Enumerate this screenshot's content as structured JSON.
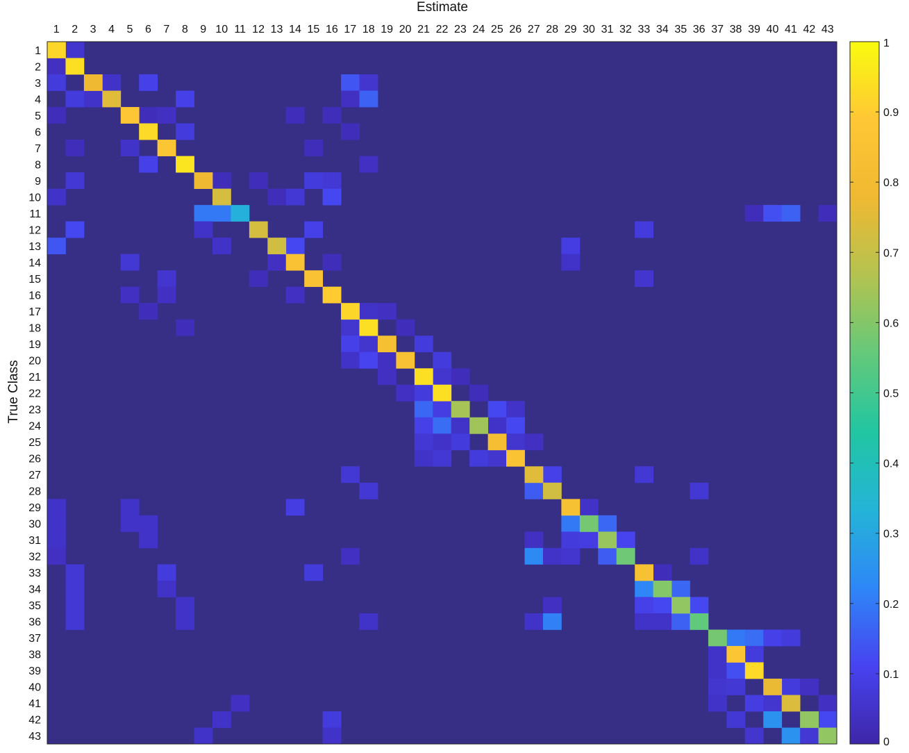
{
  "chart_data": {
    "type": "heatmap",
    "title": "",
    "xlabel": "Estimate",
    "ylabel": "True Class",
    "x_categories": [
      "1",
      "2",
      "3",
      "4",
      "5",
      "6",
      "7",
      "8",
      "9",
      "10",
      "11",
      "12",
      "13",
      "14",
      "15",
      "16",
      "17",
      "18",
      "19",
      "20",
      "21",
      "22",
      "23",
      "24",
      "25",
      "26",
      "27",
      "28",
      "29",
      "30",
      "31",
      "32",
      "33",
      "34",
      "35",
      "36",
      "37",
      "38",
      "39",
      "40",
      "41",
      "42",
      "43"
    ],
    "y_categories": [
      "1",
      "2",
      "3",
      "4",
      "5",
      "6",
      "7",
      "8",
      "9",
      "10",
      "11",
      "12",
      "13",
      "14",
      "15",
      "16",
      "17",
      "18",
      "19",
      "20",
      "21",
      "22",
      "23",
      "24",
      "25",
      "26",
      "27",
      "28",
      "29",
      "30",
      "31",
      "32",
      "33",
      "34",
      "35",
      "36",
      "37",
      "38",
      "39",
      "40",
      "41",
      "42",
      "43"
    ],
    "diagonal": [
      0.92,
      0.94,
      0.78,
      0.75,
      0.88,
      0.93,
      0.87,
      0.95,
      0.78,
      0.73,
      0.32,
      0.73,
      0.72,
      0.85,
      0.85,
      0.9,
      0.92,
      0.94,
      0.83,
      0.85,
      0.94,
      0.94,
      0.65,
      0.64,
      0.82,
      0.86,
      0.75,
      0.72,
      0.84,
      0.58,
      0.63,
      0.57,
      0.84,
      0.6,
      0.62,
      0.55,
      0.58,
      0.87,
      0.93,
      0.77,
      0.74,
      0.62,
      0.62
    ],
    "off_diagonal": [
      [
        0,
        1,
        0.06
      ],
      [
        1,
        0,
        0.04
      ],
      [
        2,
        0,
        0.08
      ],
      [
        2,
        3,
        0.05
      ],
      [
        2,
        5,
        0.1
      ],
      [
        2,
        16,
        0.14
      ],
      [
        2,
        17,
        0.06
      ],
      [
        3,
        1,
        0.08
      ],
      [
        3,
        2,
        0.05
      ],
      [
        3,
        7,
        0.1
      ],
      [
        3,
        16,
        0.04
      ],
      [
        3,
        17,
        0.16
      ],
      [
        4,
        0,
        0.03
      ],
      [
        4,
        5,
        0.03
      ],
      [
        4,
        6,
        0.04
      ],
      [
        4,
        13,
        0.03
      ],
      [
        4,
        15,
        0.03
      ],
      [
        5,
        7,
        0.08
      ],
      [
        5,
        16,
        0.03
      ],
      [
        6,
        1,
        0.03
      ],
      [
        6,
        4,
        0.05
      ],
      [
        6,
        14,
        0.03
      ],
      [
        7,
        5,
        0.1
      ],
      [
        7,
        17,
        0.04
      ],
      [
        8,
        1,
        0.07
      ],
      [
        8,
        9,
        0.03
      ],
      [
        8,
        11,
        0.03
      ],
      [
        8,
        14,
        0.08
      ],
      [
        8,
        15,
        0.07
      ],
      [
        9,
        0,
        0.05
      ],
      [
        9,
        12,
        0.03
      ],
      [
        9,
        13,
        0.07
      ],
      [
        9,
        15,
        0.12
      ],
      [
        10,
        8,
        0.2
      ],
      [
        10,
        9,
        0.2
      ],
      [
        10,
        38,
        0.03
      ],
      [
        10,
        39,
        0.13
      ],
      [
        10,
        40,
        0.16
      ],
      [
        10,
        42,
        0.03
      ],
      [
        11,
        1,
        0.12
      ],
      [
        11,
        8,
        0.05
      ],
      [
        11,
        14,
        0.1
      ],
      [
        11,
        32,
        0.08
      ],
      [
        12,
        0,
        0.14
      ],
      [
        12,
        9,
        0.05
      ],
      [
        12,
        13,
        0.12
      ],
      [
        12,
        28,
        0.09
      ],
      [
        13,
        4,
        0.07
      ],
      [
        13,
        12,
        0.04
      ],
      [
        13,
        15,
        0.03
      ],
      [
        13,
        28,
        0.05
      ],
      [
        14,
        6,
        0.06
      ],
      [
        14,
        11,
        0.03
      ],
      [
        14,
        32,
        0.06
      ],
      [
        15,
        4,
        0.04
      ],
      [
        15,
        6,
        0.04
      ],
      [
        15,
        13,
        0.04
      ],
      [
        16,
        5,
        0.03
      ],
      [
        16,
        17,
        0.05
      ],
      [
        16,
        18,
        0.04
      ],
      [
        17,
        7,
        0.03
      ],
      [
        17,
        16,
        0.06
      ],
      [
        17,
        19,
        0.03
      ],
      [
        18,
        16,
        0.1
      ],
      [
        18,
        17,
        0.06
      ],
      [
        18,
        20,
        0.08
      ],
      [
        19,
        16,
        0.05
      ],
      [
        19,
        17,
        0.11
      ],
      [
        19,
        18,
        0.04
      ],
      [
        19,
        21,
        0.08
      ],
      [
        20,
        18,
        0.04
      ],
      [
        20,
        21,
        0.06
      ],
      [
        20,
        22,
        0.03
      ],
      [
        21,
        19,
        0.04
      ],
      [
        21,
        20,
        0.08
      ],
      [
        21,
        23,
        0.03
      ],
      [
        22,
        20,
        0.17
      ],
      [
        22,
        21,
        0.09
      ],
      [
        22,
        24,
        0.12
      ],
      [
        22,
        25,
        0.05
      ],
      [
        23,
        20,
        0.1
      ],
      [
        23,
        21,
        0.18
      ],
      [
        23,
        22,
        0.05
      ],
      [
        23,
        24,
        0.05
      ],
      [
        23,
        25,
        0.12
      ],
      [
        24,
        20,
        0.07
      ],
      [
        24,
        21,
        0.05
      ],
      [
        24,
        22,
        0.08
      ],
      [
        24,
        25,
        0.06
      ],
      [
        24,
        26,
        0.04
      ],
      [
        25,
        20,
        0.05
      ],
      [
        25,
        21,
        0.07
      ],
      [
        25,
        23,
        0.08
      ],
      [
        25,
        24,
        0.06
      ],
      [
        26,
        16,
        0.07
      ],
      [
        26,
        27,
        0.1
      ],
      [
        26,
        32,
        0.07
      ],
      [
        27,
        17,
        0.07
      ],
      [
        27,
        26,
        0.15
      ],
      [
        27,
        35,
        0.07
      ],
      [
        28,
        0,
        0.05
      ],
      [
        28,
        4,
        0.05
      ],
      [
        28,
        13,
        0.09
      ],
      [
        28,
        29,
        0.05
      ],
      [
        29,
        0,
        0.05
      ],
      [
        29,
        4,
        0.05
      ],
      [
        29,
        5,
        0.05
      ],
      [
        29,
        28,
        0.2
      ],
      [
        29,
        30,
        0.17
      ],
      [
        30,
        0,
        0.05
      ],
      [
        30,
        5,
        0.05
      ],
      [
        30,
        26,
        0.04
      ],
      [
        30,
        28,
        0.08
      ],
      [
        30,
        29,
        0.09
      ],
      [
        30,
        31,
        0.11
      ],
      [
        31,
        0,
        0.04
      ],
      [
        31,
        16,
        0.04
      ],
      [
        31,
        26,
        0.23
      ],
      [
        31,
        27,
        0.05
      ],
      [
        31,
        28,
        0.06
      ],
      [
        31,
        30,
        0.15
      ],
      [
        31,
        35,
        0.05
      ],
      [
        32,
        1,
        0.07
      ],
      [
        32,
        6,
        0.08
      ],
      [
        32,
        14,
        0.08
      ],
      [
        32,
        33,
        0.03
      ],
      [
        33,
        1,
        0.07
      ],
      [
        33,
        6,
        0.05
      ],
      [
        33,
        32,
        0.22
      ],
      [
        33,
        34,
        0.17
      ],
      [
        34,
        1,
        0.07
      ],
      [
        34,
        7,
        0.05
      ],
      [
        34,
        27,
        0.04
      ],
      [
        34,
        32,
        0.1
      ],
      [
        34,
        33,
        0.12
      ],
      [
        34,
        35,
        0.12
      ],
      [
        35,
        1,
        0.07
      ],
      [
        35,
        7,
        0.05
      ],
      [
        35,
        17,
        0.05
      ],
      [
        35,
        26,
        0.05
      ],
      [
        35,
        27,
        0.21
      ],
      [
        35,
        32,
        0.05
      ],
      [
        35,
        33,
        0.05
      ],
      [
        35,
        34,
        0.16
      ],
      [
        36,
        37,
        0.2
      ],
      [
        36,
        38,
        0.18
      ],
      [
        36,
        39,
        0.1
      ],
      [
        36,
        40,
        0.08
      ],
      [
        37,
        36,
        0.05
      ],
      [
        37,
        38,
        0.08
      ],
      [
        38,
        36,
        0.05
      ],
      [
        38,
        37,
        0.13
      ],
      [
        39,
        36,
        0.06
      ],
      [
        39,
        37,
        0.07
      ],
      [
        39,
        40,
        0.08
      ],
      [
        39,
        41,
        0.04
      ],
      [
        40,
        10,
        0.04
      ],
      [
        40,
        36,
        0.05
      ],
      [
        40,
        38,
        0.09
      ],
      [
        40,
        39,
        0.06
      ],
      [
        40,
        42,
        0.04
      ],
      [
        41,
        9,
        0.05
      ],
      [
        41,
        15,
        0.08
      ],
      [
        41,
        37,
        0.07
      ],
      [
        41,
        39,
        0.25
      ],
      [
        41,
        42,
        0.12
      ],
      [
        42,
        8,
        0.05
      ],
      [
        42,
        15,
        0.05
      ],
      [
        42,
        38,
        0.06
      ],
      [
        42,
        40,
        0.25
      ],
      [
        42,
        41,
        0.07
      ]
    ],
    "clim": [
      0,
      1
    ],
    "colorbar_ticks": [
      "0",
      "0.1",
      "0.2",
      "0.3",
      "0.4",
      "0.5",
      "0.6",
      "0.7",
      "0.8",
      "0.9",
      "1"
    ],
    "colormap": [
      "#3e26a8",
      "#4743f0",
      "#2e87f7",
      "#24b4d7",
      "#21c6a2",
      "#64c97a",
      "#b3c350",
      "#efb932",
      "#fec735",
      "#f9fb0e"
    ],
    "background_color": "#372f86",
    "grid": false,
    "legend": "colorbar right"
  }
}
